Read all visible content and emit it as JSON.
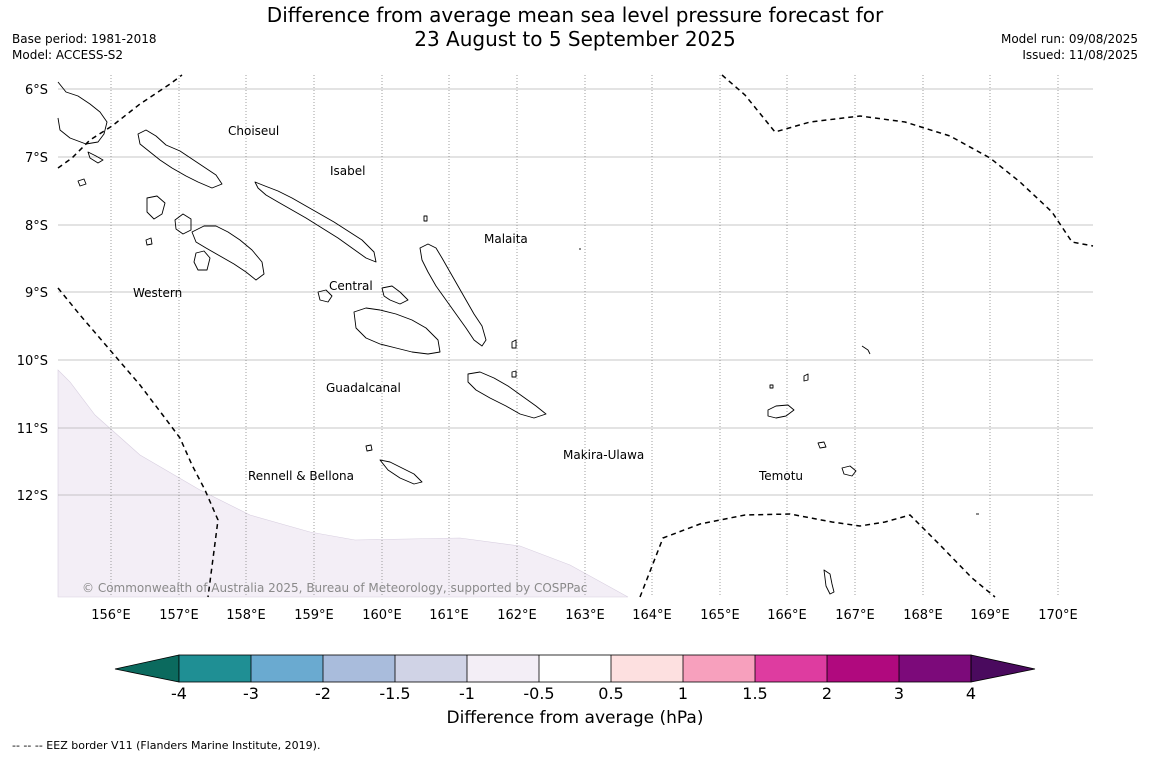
{
  "title": {
    "line1": "Difference from average mean sea level pressure forecast for",
    "line2": "23 August to 5 September 2025"
  },
  "meta_left": {
    "base_period": "Base period: 1981-2018",
    "model": "Model: ACCESS-S2"
  },
  "meta_right": {
    "model_run": "Model run: 09/08/2025",
    "issued": "Issued: 11/08/2025"
  },
  "lat_labels": [
    "6°S",
    "7°S",
    "8°S",
    "9°S",
    "10°S",
    "11°S",
    "12°S"
  ],
  "lon_labels": [
    "156°E",
    "157°E",
    "158°E",
    "159°E",
    "160°E",
    "161°E",
    "162°E",
    "163°E",
    "164°E",
    "165°E",
    "166°E",
    "167°E",
    "168°E",
    "169°E",
    "170°E"
  ],
  "places": [
    "Choiseul",
    "Isabel",
    "Malaita",
    "Western",
    "Central",
    "Guadalcanal",
    "Makira-Ulawa",
    "Rennell & Bellona",
    "Temotu"
  ],
  "copyright": "© Commonwealth of Australia 2025, Bureau of Meteorology, supported by COSPPac",
  "colorbar": {
    "ticks": [
      "-4",
      "-3",
      "-2",
      "-1.5",
      "-1",
      "-0.5",
      "0.5",
      "1",
      "1.5",
      "2",
      "3",
      "4"
    ],
    "colors": [
      "#1f8f94",
      "#6aaad0",
      "#a9bcdc",
      "#d0d3e6",
      "#f3eef6",
      "#ffffff",
      "#fde0e0",
      "#f7a0bd",
      "#de3ca0",
      "#b0097e",
      "#7c0a7a"
    ],
    "under_color": "#0b6a5e",
    "over_color": "#4a0a5e",
    "label": "Difference from average (hPa)"
  },
  "shaded_region_color": "#f3eef6",
  "footnote": "--  --  -- EEZ border V11 (Flanders Marine Institute, 2019)."
}
